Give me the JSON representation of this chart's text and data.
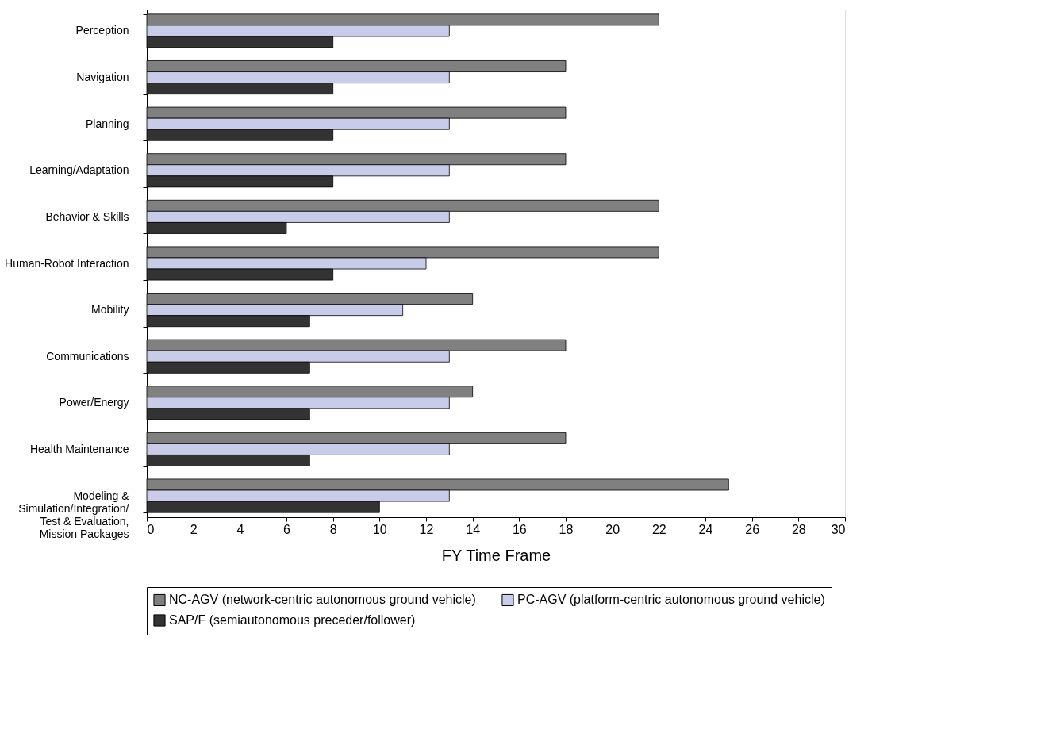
{
  "chart_data": {
    "type": "bar",
    "orientation": "horizontal",
    "xlabel": "FY Time Frame",
    "categories": [
      "Perception",
      "Navigation",
      "Planning",
      "Learning/Adaptation",
      "Behavior & Skills",
      "Human-Robot Interaction",
      "Mobility",
      "Communications",
      "Power/Energy",
      "Health Maintenance",
      "Modeling &\nSimulation/Integration/\nTest & Evaluation,\nMission Packages"
    ],
    "series": [
      {
        "name": "NC-AGV (network-centric autonomous ground vehicle)",
        "color": "#808080",
        "values": [
          22,
          18,
          18,
          18,
          22,
          22,
          14,
          18,
          14,
          18,
          25
        ]
      },
      {
        "name": "PC-AGV (platform-centric autonomous ground vehicle)",
        "color": "#c9cce8",
        "values": [
          13,
          13,
          13,
          13,
          13,
          12,
          11,
          13,
          13,
          13,
          13
        ]
      },
      {
        "name": "SAP/F (semiautonomous preceder/follower)",
        "color": "#333333",
        "values": [
          8,
          8,
          8,
          8,
          6,
          8,
          7,
          7,
          7,
          7,
          10
        ]
      }
    ],
    "xlim": [
      0,
      30
    ],
    "xticks": [
      0,
      2,
      4,
      6,
      8,
      10,
      12,
      14,
      16,
      18,
      20,
      22,
      24,
      26,
      28,
      30
    ],
    "grid": false,
    "legend": "bottom"
  }
}
